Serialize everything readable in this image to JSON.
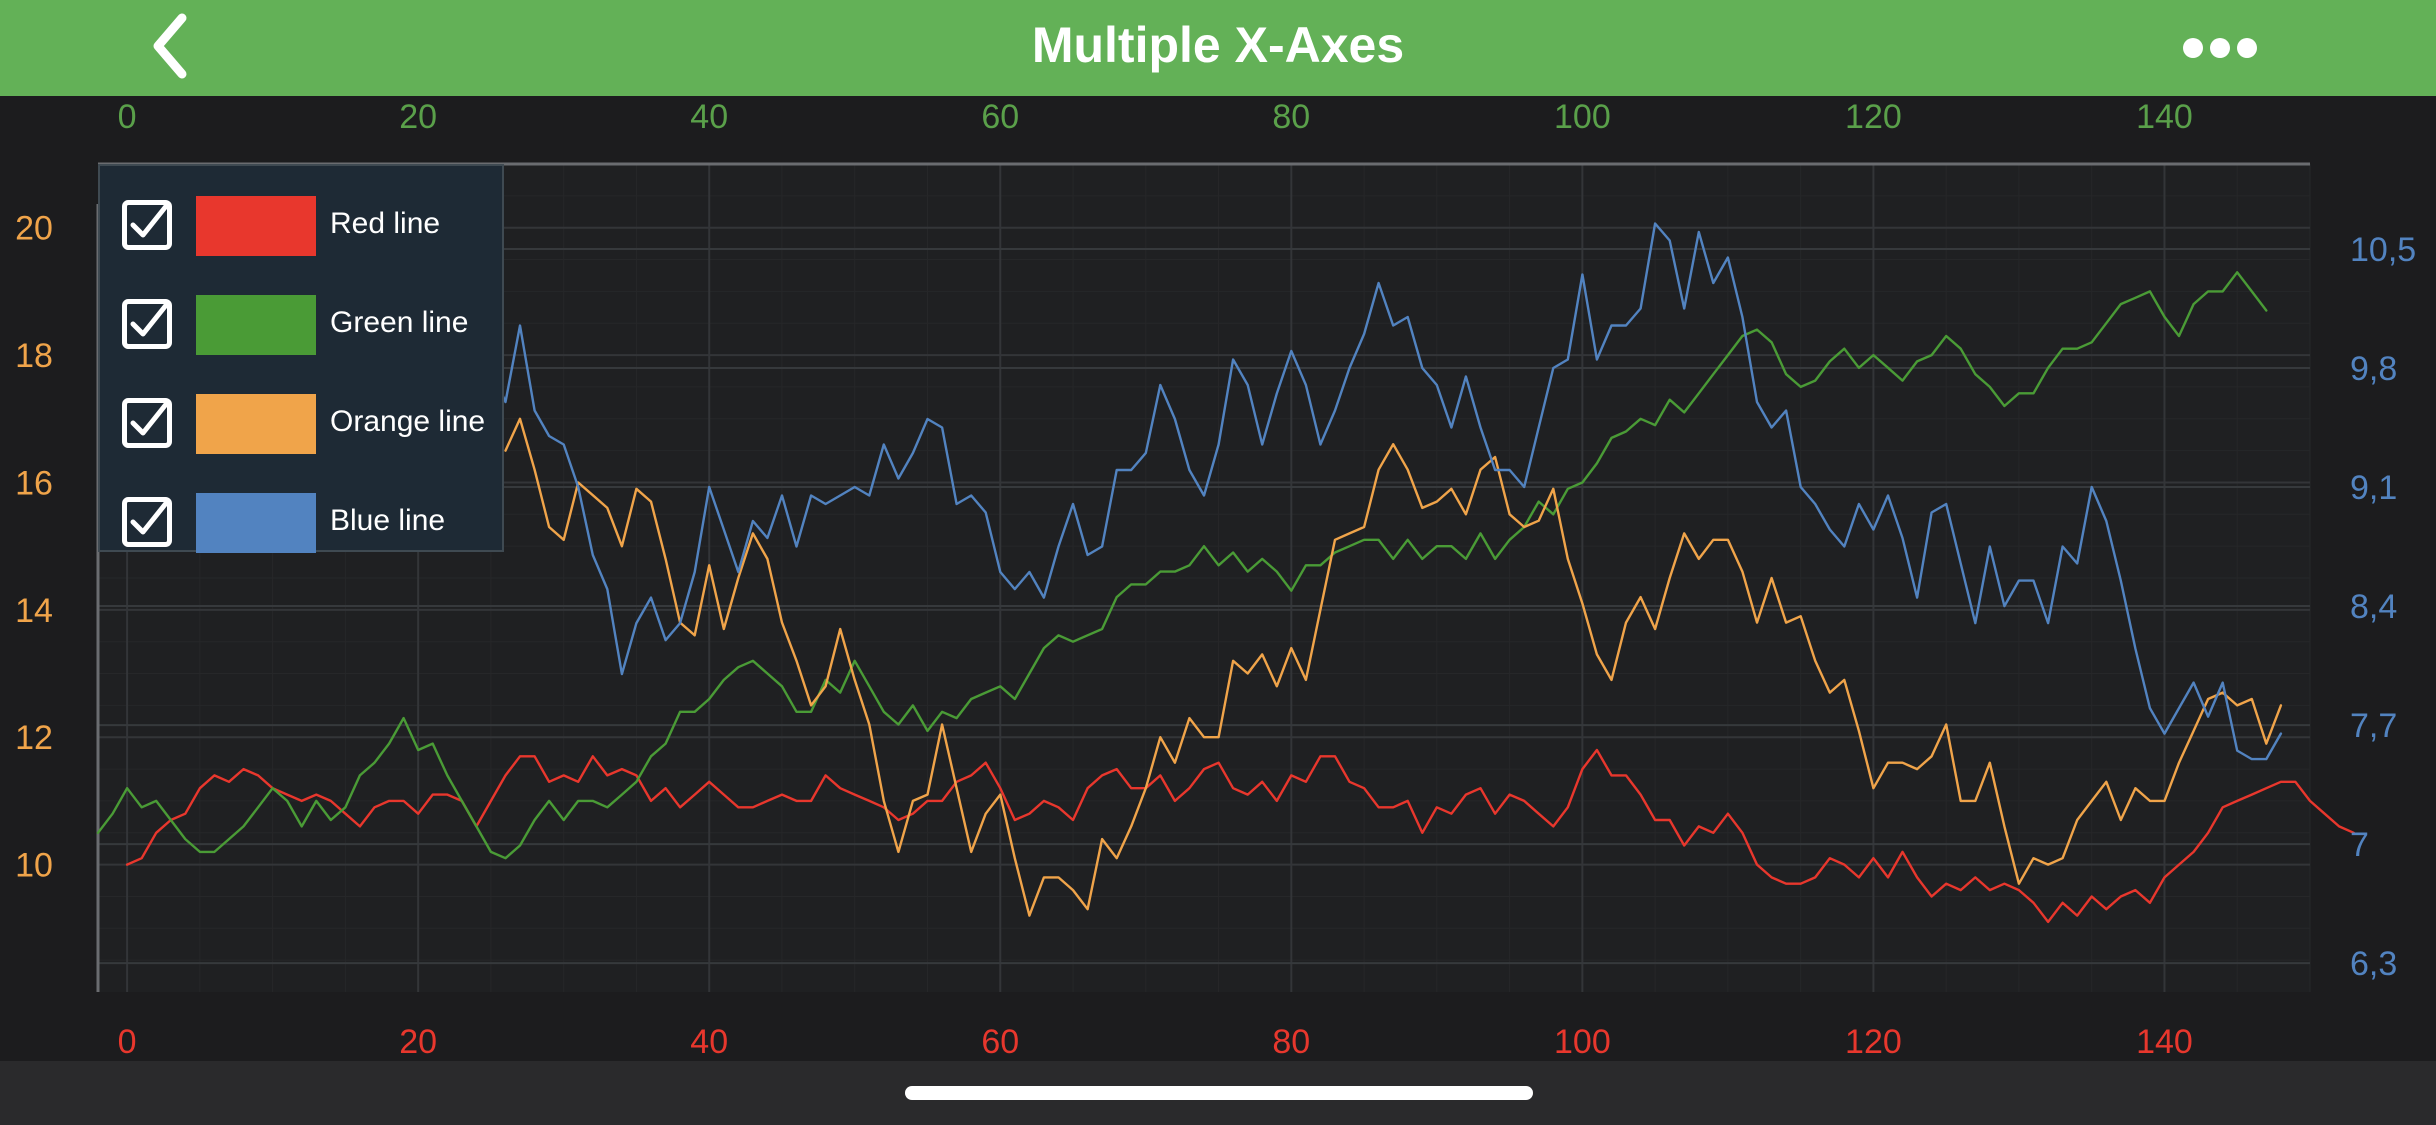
{
  "header": {
    "title": "Multiple X-Axes",
    "back_icon": "chevron-left-icon",
    "more_icon": "more-horizontal-icon",
    "background": "#63b157"
  },
  "legend": {
    "items": [
      {
        "label": "Red line",
        "color": "#e8372d",
        "checked": true
      },
      {
        "label": "Green line",
        "color": "#4a9b36",
        "checked": true
      },
      {
        "label": "Orange line",
        "color": "#f0a44a",
        "checked": true
      },
      {
        "label": "Blue line",
        "color": "#5283c0",
        "checked": true
      }
    ]
  },
  "chart_data": {
    "type": "line",
    "title": "",
    "grid": true,
    "legend_position": "top-left",
    "axes": {
      "x_top": {
        "color": "#5aa04a",
        "range": [
          -2,
          150
        ],
        "ticks": [
          0,
          20,
          40,
          60,
          80,
          100,
          120,
          140
        ]
      },
      "x_bottom": {
        "color": "#e8372d",
        "range": [
          -2,
          150
        ],
        "ticks": [
          0,
          20,
          40,
          60,
          80,
          100,
          120,
          140
        ]
      },
      "y_left": {
        "color": "#f0a44a",
        "range": [
          8,
          21
        ],
        "ticks": [
          10,
          12,
          14,
          16,
          18,
          20
        ]
      },
      "y_right": {
        "color": "#5283c0",
        "range": [
          6.13,
          11.0
        ],
        "tick_labels": [
          "6,3",
          "7",
          "7,7",
          "8,4",
          "9,1",
          "9,8",
          "10,5"
        ],
        "ticks": [
          6.3,
          7.0,
          7.7,
          8.4,
          9.1,
          9.8,
          10.5
        ]
      }
    },
    "series": [
      {
        "name": "Red line",
        "color": "#e8372d",
        "x_axis": "x_bottom",
        "y_axis": "y_left",
        "x_start": 0,
        "values": [
          10.0,
          10.1,
          10.5,
          10.7,
          10.8,
          11.2,
          11.4,
          11.3,
          11.5,
          11.4,
          11.2,
          11.1,
          11.0,
          11.1,
          11.0,
          10.8,
          10.6,
          10.9,
          11.0,
          11.0,
          10.8,
          11.1,
          11.1,
          11.0,
          10.6,
          11.0,
          11.4,
          11.7,
          11.7,
          11.3,
          11.4,
          11.3,
          11.7,
          11.4,
          11.5,
          11.4,
          11.0,
          11.2,
          10.9,
          11.1,
          11.3,
          11.1,
          10.9,
          10.9,
          11.0,
          11.1,
          11.0,
          11.0,
          11.4,
          11.2,
          11.1,
          11.0,
          10.9,
          10.7,
          10.8,
          11.0,
          11.0,
          11.3,
          11.4,
          11.6,
          11.2,
          10.7,
          10.8,
          11.0,
          10.9,
          10.7,
          11.2,
          11.4,
          11.5,
          11.2,
          11.2,
          11.4,
          11.0,
          11.2,
          11.5,
          11.6,
          11.2,
          11.1,
          11.3,
          11.0,
          11.4,
          11.3,
          11.7,
          11.7,
          11.3,
          11.2,
          10.9,
          10.9,
          11.0,
          10.5,
          10.9,
          10.8,
          11.1,
          11.2,
          10.8,
          11.1,
          11.0,
          10.8,
          10.6,
          10.9,
          11.5,
          11.8,
          11.4,
          11.4,
          11.1,
          10.7,
          10.7,
          10.3,
          10.6,
          10.5,
          10.8,
          10.5,
          10.0,
          9.8,
          9.7,
          9.7,
          9.8,
          10.1,
          10.0,
          9.8,
          10.1,
          9.8,
          10.2,
          9.8,
          9.5,
          9.7,
          9.6,
          9.8,
          9.6,
          9.7,
          9.6,
          9.4,
          9.1,
          9.4,
          9.2,
          9.5,
          9.3,
          9.5,
          9.6,
          9.4,
          9.8,
          10.0,
          10.2,
          10.5,
          10.9,
          11.0,
          11.1,
          11.2,
          11.3,
          11.3,
          11.0,
          10.8,
          10.6,
          10.5
        ]
      },
      {
        "name": "Green line",
        "color": "#4a9b36",
        "x_axis": "x_top",
        "y_axis": "y_left",
        "x_start": -2,
        "values": [
          10.5,
          10.8,
          11.2,
          10.9,
          11.0,
          10.7,
          10.4,
          10.2,
          10.2,
          10.4,
          10.6,
          10.9,
          11.2,
          11.0,
          10.6,
          11.0,
          10.7,
          10.9,
          11.4,
          11.6,
          11.9,
          12.3,
          11.8,
          11.9,
          11.4,
          11.0,
          10.6,
          10.2,
          10.1,
          10.3,
          10.7,
          11.0,
          10.7,
          11.0,
          11.0,
          10.9,
          11.1,
          11.3,
          11.7,
          11.9,
          12.4,
          12.4,
          12.6,
          12.9,
          13.1,
          13.2,
          13.0,
          12.8,
          12.4,
          12.4,
          12.9,
          12.7,
          13.2,
          12.8,
          12.4,
          12.2,
          12.5,
          12.1,
          12.4,
          12.3,
          12.6,
          12.7,
          12.8,
          12.6,
          13.0,
          13.4,
          13.6,
          13.5,
          13.6,
          13.7,
          14.2,
          14.4,
          14.4,
          14.6,
          14.6,
          14.7,
          15.0,
          14.7,
          14.9,
          14.6,
          14.8,
          14.6,
          14.3,
          14.7,
          14.7,
          14.9,
          15.0,
          15.1,
          15.1,
          14.8,
          15.1,
          14.8,
          15.0,
          15.0,
          14.8,
          15.2,
          14.8,
          15.1,
          15.3,
          15.7,
          15.5,
          15.9,
          16.0,
          16.3,
          16.7,
          16.8,
          17.0,
          16.9,
          17.3,
          17.1,
          17.4,
          17.7,
          18.0,
          18.3,
          18.4,
          18.2,
          17.7,
          17.5,
          17.6,
          17.9,
          18.1,
          17.8,
          18.0,
          17.8,
          17.6,
          17.9,
          18.0,
          18.3,
          18.1,
          17.7,
          17.5,
          17.2,
          17.4,
          17.4,
          17.8,
          18.1,
          18.1,
          18.2,
          18.5,
          18.8,
          18.9,
          19.0,
          18.6,
          18.3,
          18.8,
          19.0,
          19.0,
          19.3,
          19.0,
          18.7
        ]
      },
      {
        "name": "Orange line",
        "color": "#f0a44a",
        "x_axis": "x_bottom",
        "y_axis": "y_left",
        "x_start": 26,
        "values": [
          16.5,
          17.0,
          16.2,
          15.3,
          15.1,
          16.0,
          15.8,
          15.6,
          15.0,
          15.9,
          15.7,
          14.8,
          13.8,
          13.6,
          14.7,
          13.7,
          14.5,
          15.2,
          14.8,
          13.8,
          13.2,
          12.5,
          12.8,
          13.7,
          12.9,
          12.2,
          11.0,
          10.2,
          11.0,
          11.1,
          12.2,
          11.2,
          10.2,
          10.8,
          11.1,
          10.1,
          9.2,
          9.8,
          9.8,
          9.6,
          9.3,
          10.4,
          10.1,
          10.6,
          11.2,
          12.0,
          11.6,
          12.3,
          12.0,
          12.0,
          13.2,
          13.0,
          13.3,
          12.8,
          13.4,
          12.9,
          14.0,
          15.1,
          15.2,
          15.3,
          16.2,
          16.6,
          16.2,
          15.6,
          15.7,
          15.9,
          15.5,
          16.2,
          16.4,
          15.5,
          15.3,
          15.4,
          15.9,
          14.8,
          14.1,
          13.3,
          12.9,
          13.8,
          14.2,
          13.7,
          14.5,
          15.2,
          14.8,
          15.1,
          15.1,
          14.6,
          13.8,
          14.5,
          13.8,
          13.9,
          13.2,
          12.7,
          12.9,
          12.1,
          11.2,
          11.6,
          11.6,
          11.5,
          11.7,
          12.2,
          11.0,
          11.0,
          11.6,
          10.6,
          9.7,
          10.1,
          10.0,
          10.1,
          10.7,
          11.0,
          11.3,
          10.7,
          11.2,
          11.0,
          11.0,
          11.6,
          12.1,
          12.6,
          12.7,
          12.5,
          12.6,
          11.9,
          12.5
        ]
      },
      {
        "name": "Blue line",
        "color": "#5283c0",
        "x_axis": "x_bottom",
        "y_axis": "y_right",
        "x_start": 25,
        "values": [
          9.8,
          9.6,
          10.05,
          9.55,
          9.4,
          9.35,
          9.1,
          8.7,
          8.5,
          8.0,
          8.3,
          8.45,
          8.2,
          8.3,
          8.6,
          9.1,
          8.85,
          8.6,
          8.9,
          8.8,
          9.05,
          8.75,
          9.05,
          9.0,
          9.05,
          9.1,
          9.05,
          9.35,
          9.15,
          9.3,
          9.5,
          9.45,
          9.0,
          9.05,
          8.95,
          8.6,
          8.5,
          8.6,
          8.45,
          8.75,
          9.0,
          8.7,
          8.75,
          9.2,
          9.2,
          9.3,
          9.7,
          9.5,
          9.2,
          9.05,
          9.35,
          9.85,
          9.7,
          9.35,
          9.65,
          9.9,
          9.7,
          9.35,
          9.55,
          9.8,
          10.0,
          10.3,
          10.05,
          10.1,
          9.8,
          9.7,
          9.45,
          9.75,
          9.45,
          9.2,
          9.2,
          9.1,
          9.45,
          9.8,
          9.85,
          10.35,
          9.85,
          10.05,
          10.05,
          10.15,
          10.65,
          10.55,
          10.15,
          10.6,
          10.3,
          10.45,
          10.1,
          9.6,
          9.45,
          9.55,
          9.1,
          9.0,
          8.85,
          8.75,
          9.0,
          8.85,
          9.05,
          8.8,
          8.45,
          8.95,
          9.0,
          8.65,
          8.3,
          8.75,
          8.4,
          8.55,
          8.55,
          8.3,
          8.75,
          8.65,
          9.1,
          8.9,
          8.55,
          8.15,
          7.8,
          7.65,
          7.8,
          7.95,
          7.75,
          7.95,
          7.55,
          7.5,
          7.5,
          7.65
        ]
      }
    ]
  }
}
